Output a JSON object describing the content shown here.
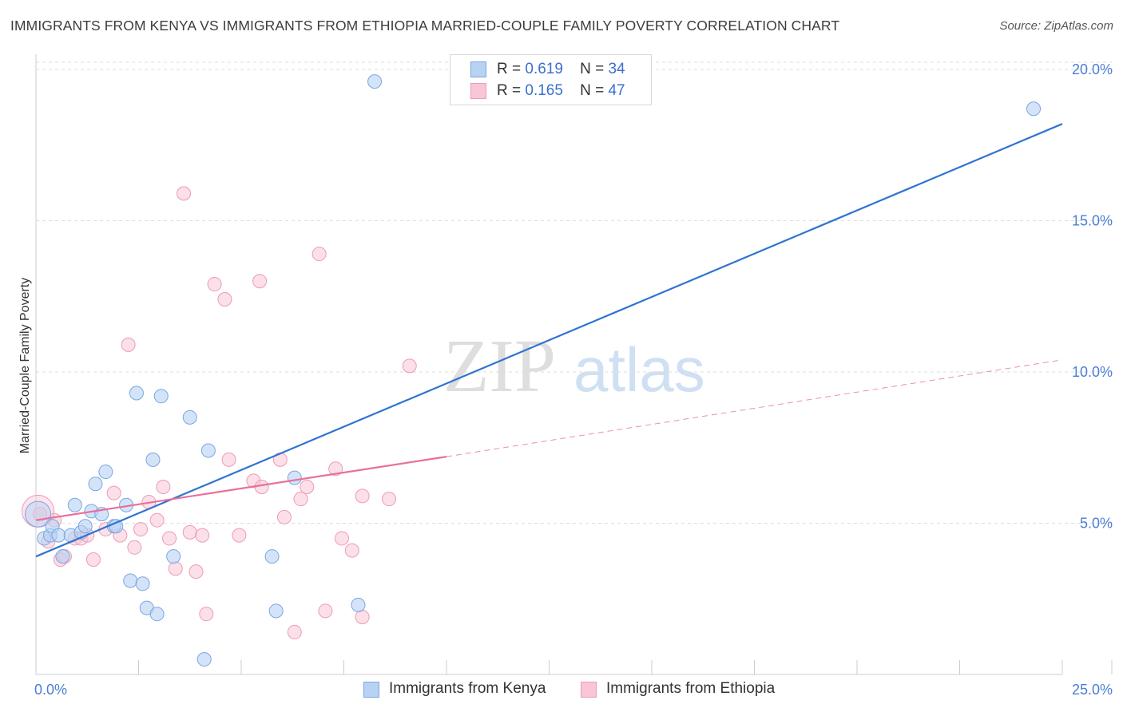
{
  "header": {
    "title": "IMMIGRANTS FROM KENYA VS IMMIGRANTS FROM ETHIOPIA MARRIED-COUPLE FAMILY POVERTY CORRELATION CHART",
    "source": "Source: ZipAtlas.com"
  },
  "legend": {
    "kenya": {
      "r_label": "R =",
      "r_value": "0.619",
      "n_label": "N =",
      "n_value": "34"
    },
    "ethiopia": {
      "r_label": "R =",
      "r_value": "0.165",
      "n_label": "N =",
      "n_value": "47"
    }
  },
  "colors": {
    "kenya_fill": "#b8d2f4",
    "kenya_stroke": "#7aa6e3",
    "kenya_line": "#2f74d0",
    "ethiopia_fill": "#f8c6d6",
    "ethiopia_stroke": "#ee9ab6",
    "ethiopia_line": "#e8709a",
    "tick_text": "#4a7fd4",
    "grid": "#dddddd"
  },
  "watermark": {
    "zip": "ZIP",
    "atlas": "atlas"
  },
  "chart_data": {
    "type": "scatter",
    "title": "IMMIGRANTS FROM KENYA VS IMMIGRANTS FROM ETHIOPIA MARRIED-COUPLE FAMILY POVERTY CORRELATION CHART",
    "xlabel": "",
    "ylabel": "Married-Couple Family Poverty",
    "xlim": [
      0,
      25
    ],
    "ylim": [
      0,
      20.5
    ],
    "x_tick_labels": [
      "0.0%",
      "25.0%"
    ],
    "y_ticks": [
      5,
      10,
      15,
      20
    ],
    "y_tick_labels": [
      "5.0%",
      "10.0%",
      "15.0%",
      "20.0%"
    ],
    "grid": true,
    "legend_position": "top-center",
    "series": [
      {
        "name": "Immigrants from Kenya",
        "r": 0.619,
        "n": 34,
        "trend": {
          "x": [
            0,
            25
          ],
          "y": [
            3.9,
            18.2
          ],
          "style": "solid"
        },
        "points": [
          [
            0.05,
            5.3
          ],
          [
            0.2,
            4.5
          ],
          [
            0.35,
            4.6
          ],
          [
            0.4,
            4.9
          ],
          [
            0.55,
            4.6
          ],
          [
            0.65,
            3.9
          ],
          [
            0.85,
            4.6
          ],
          [
            0.95,
            5.6
          ],
          [
            1.1,
            4.7
          ],
          [
            1.2,
            4.9
          ],
          [
            1.35,
            5.4
          ],
          [
            1.45,
            6.3
          ],
          [
            1.6,
            5.3
          ],
          [
            1.7,
            6.7
          ],
          [
            1.9,
            4.9
          ],
          [
            1.95,
            4.9
          ],
          [
            2.2,
            5.6
          ],
          [
            2.3,
            3.1
          ],
          [
            2.45,
            9.3
          ],
          [
            2.6,
            3.0
          ],
          [
            2.7,
            2.2
          ],
          [
            2.85,
            7.1
          ],
          [
            2.95,
            2.0
          ],
          [
            3.05,
            9.2
          ],
          [
            3.35,
            3.9
          ],
          [
            3.75,
            8.5
          ],
          [
            4.1,
            0.5
          ],
          [
            4.2,
            7.4
          ],
          [
            5.75,
            3.9
          ],
          [
            5.85,
            2.1
          ],
          [
            6.3,
            6.5
          ],
          [
            7.85,
            2.3
          ],
          [
            8.25,
            19.6
          ],
          [
            24.3,
            18.7
          ]
        ]
      },
      {
        "name": "Immigrants from Ethiopia",
        "r": 0.165,
        "n": 47,
        "trend": {
          "x": [
            0,
            10
          ],
          "y": [
            5.1,
            7.2
          ],
          "style": "solid"
        },
        "trend_extension": {
          "x": [
            10,
            25
          ],
          "y": [
            7.2,
            10.4
          ],
          "style": "dashed"
        },
        "points": [
          [
            0.1,
            5.3
          ],
          [
            0.3,
            4.4
          ],
          [
            0.45,
            5.1
          ],
          [
            0.6,
            3.8
          ],
          [
            0.7,
            3.9
          ],
          [
            0.95,
            4.5
          ],
          [
            1.1,
            4.5
          ],
          [
            1.25,
            4.6
          ],
          [
            1.4,
            3.8
          ],
          [
            1.7,
            4.8
          ],
          [
            1.9,
            6.0
          ],
          [
            2.05,
            4.6
          ],
          [
            2.25,
            10.9
          ],
          [
            2.4,
            4.2
          ],
          [
            2.55,
            4.8
          ],
          [
            2.75,
            5.7
          ],
          [
            2.95,
            5.1
          ],
          [
            3.1,
            6.2
          ],
          [
            3.25,
            4.5
          ],
          [
            3.4,
            3.5
          ],
          [
            3.6,
            15.9
          ],
          [
            3.75,
            4.7
          ],
          [
            3.9,
            3.4
          ],
          [
            4.05,
            4.6
          ],
          [
            4.15,
            2.0
          ],
          [
            4.35,
            12.9
          ],
          [
            4.6,
            12.4
          ],
          [
            4.7,
            7.1
          ],
          [
            4.95,
            4.6
          ],
          [
            5.3,
            6.4
          ],
          [
            5.45,
            13.0
          ],
          [
            5.5,
            6.2
          ],
          [
            5.95,
            7.1
          ],
          [
            6.05,
            5.2
          ],
          [
            6.3,
            1.4
          ],
          [
            6.45,
            5.8
          ],
          [
            6.6,
            6.2
          ],
          [
            6.9,
            13.9
          ],
          [
            7.05,
            2.1
          ],
          [
            7.3,
            6.8
          ],
          [
            7.45,
            4.5
          ],
          [
            7.7,
            4.1
          ],
          [
            7.95,
            1.9
          ],
          [
            7.95,
            5.9
          ],
          [
            8.6,
            5.8
          ],
          [
            9.1,
            10.2
          ],
          [
            0.05,
            5.4
          ]
        ]
      }
    ]
  },
  "bottom_legend": {
    "kenya_label": "Immigrants from Kenya",
    "ethiopia_label": "Immigrants from Ethiopia"
  }
}
